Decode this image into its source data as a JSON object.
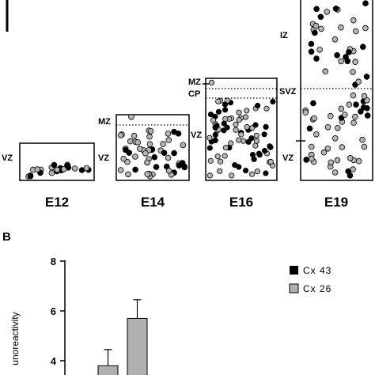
{
  "panel_a": {
    "stages": [
      "E12",
      "E14",
      "E16",
      "E19"
    ],
    "zone_labels": {
      "e12_vz_left": "VZ",
      "e12_vz_right": "VZ",
      "e14_mz": "MZ",
      "e16_vz": "VZ",
      "e16_mz": "MZ",
      "e16_cp": "CP",
      "e19_iz": "IZ",
      "e19_svz": "SVZ",
      "e19_vz": "VZ"
    },
    "colors": {
      "cx43_cell": "#000000",
      "cx26_cell": "#b5b5b5"
    }
  },
  "panel_b": {
    "panel_label": "B",
    "ylabel_partial": "unoreactivity",
    "legend": [
      {
        "label": "Cx 43",
        "color": "#000000"
      },
      {
        "label": "Cx 26",
        "color": "#b0b0b0"
      }
    ]
  },
  "chart_data": {
    "type": "bar",
    "ylabel": "unoreactivity",
    "ylim": [
      3.2,
      8
    ],
    "yticks": [
      4,
      6,
      8
    ],
    "series": [
      {
        "name": "Cx 26",
        "values": [
          3.8,
          5.7
        ],
        "errors": [
          0.65,
          0.75
        ],
        "color": "#b0b0b0"
      }
    ]
  }
}
